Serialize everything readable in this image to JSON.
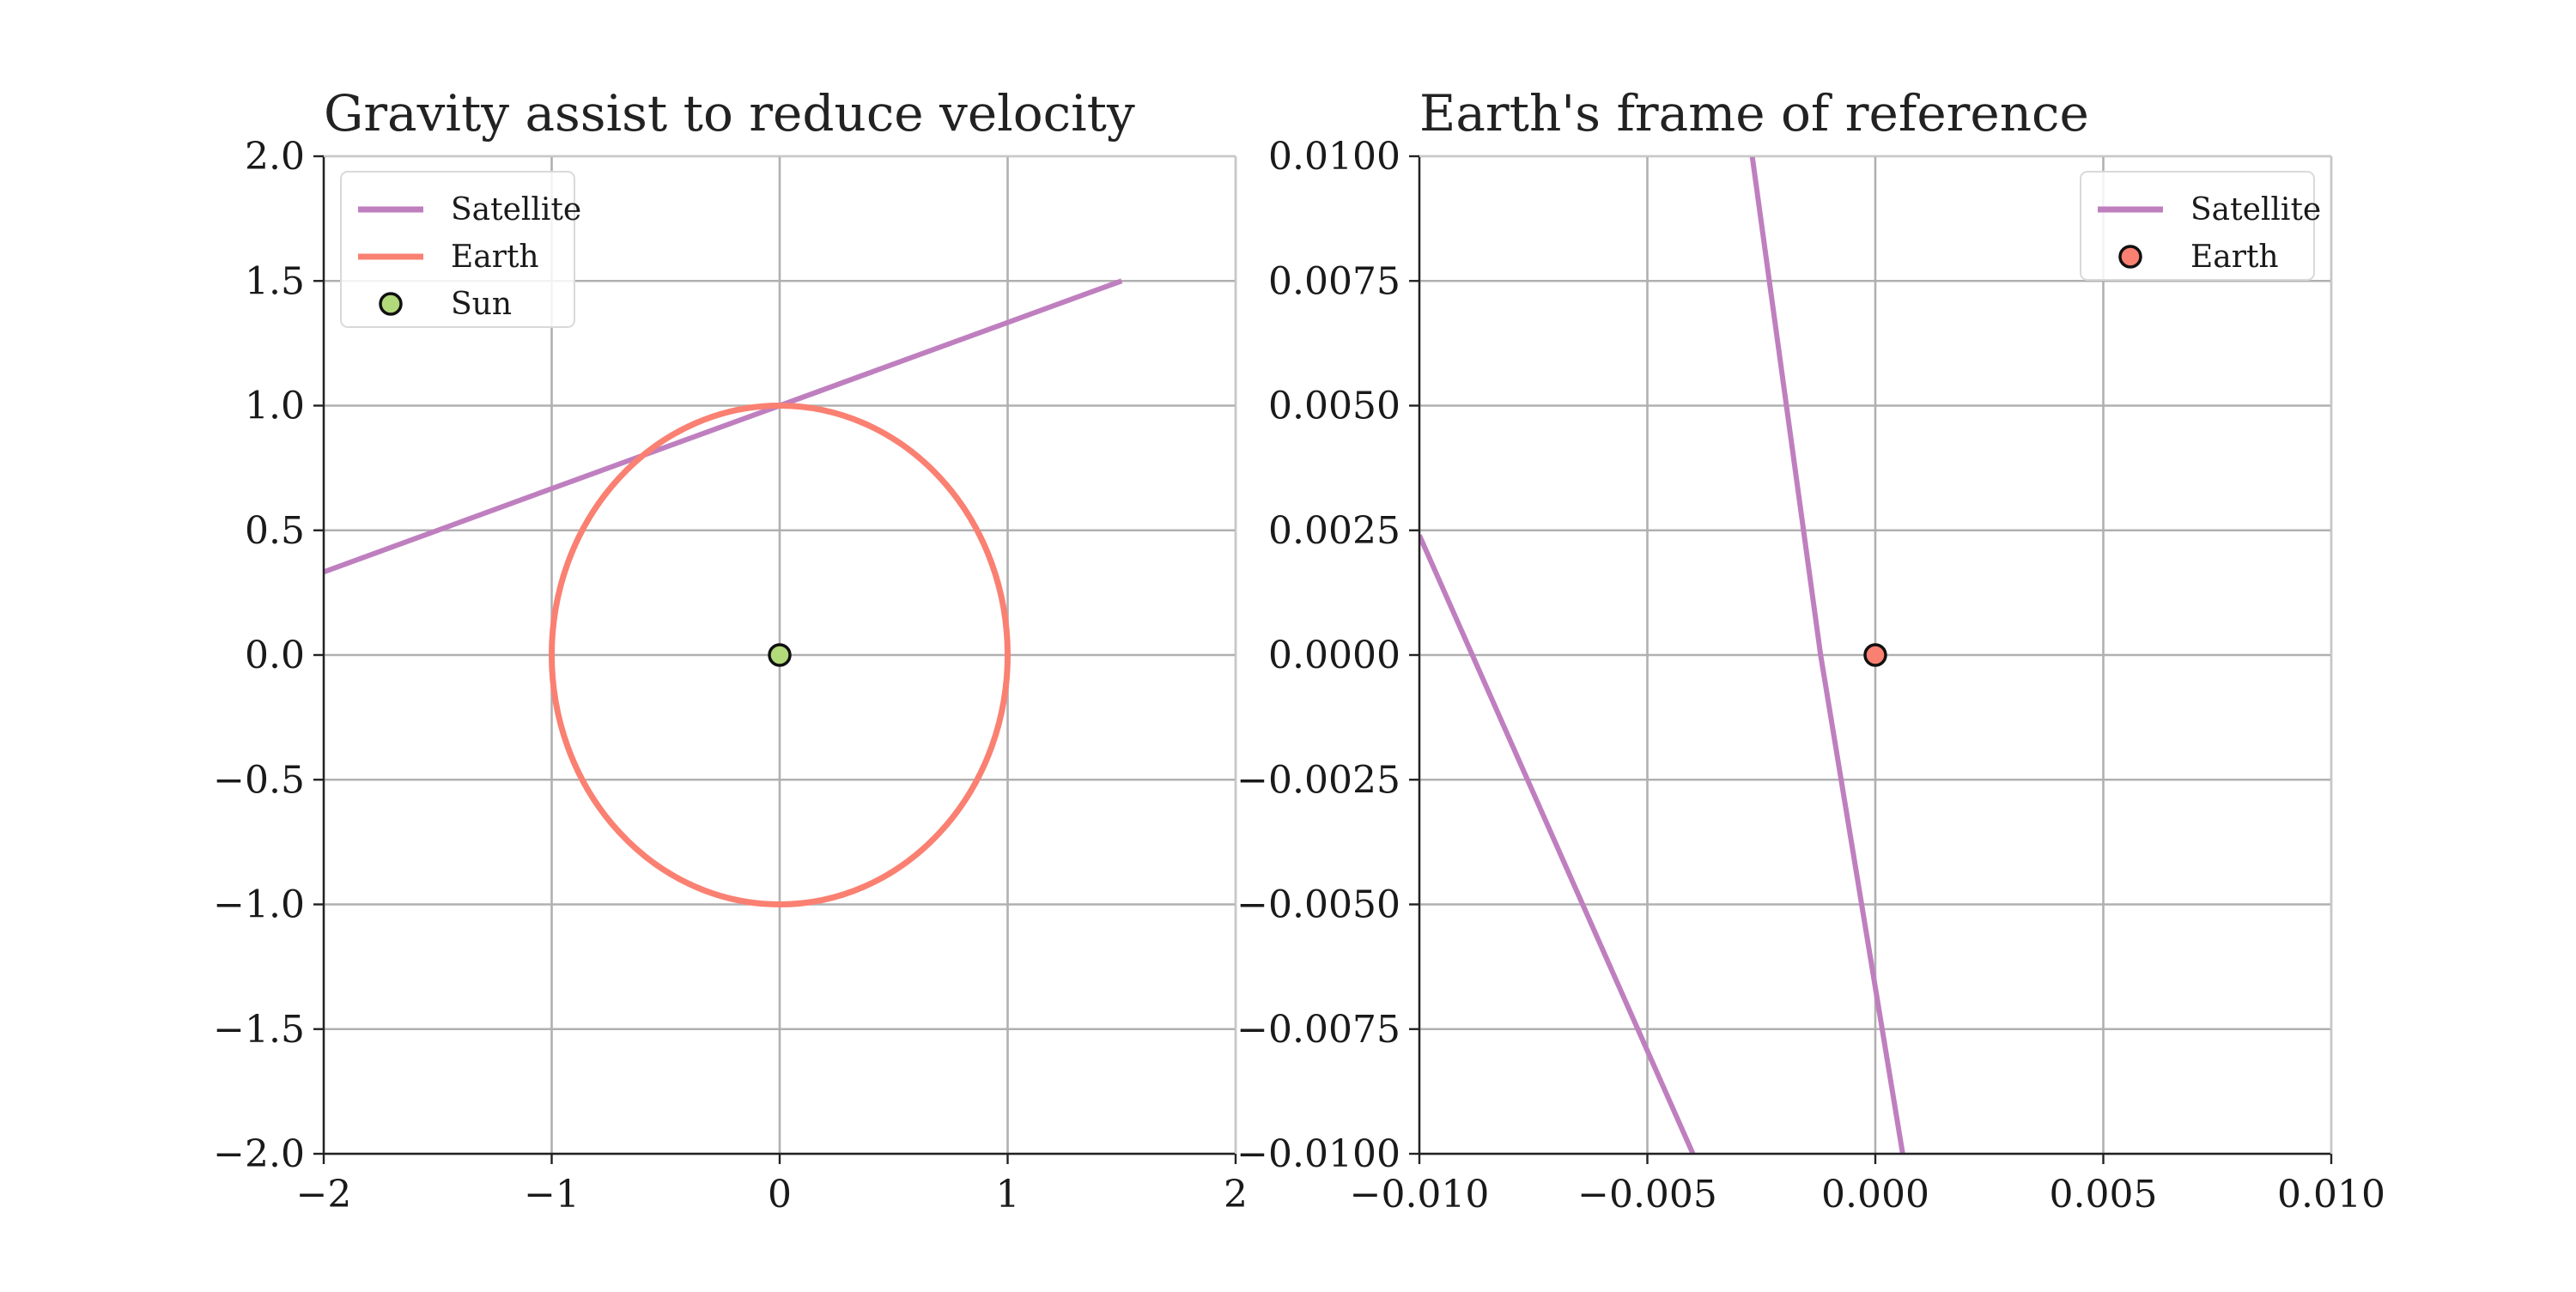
{
  "chart_data": [
    {
      "type": "line",
      "title": "Gravity assist to reduce velocity",
      "xlabel": "",
      "ylabel": "",
      "xlim": [
        -2,
        2
      ],
      "ylim": [
        -2,
        2
      ],
      "xticks": [
        -2,
        -1,
        0,
        1,
        2
      ],
      "yticks": [
        -2.0,
        -1.5,
        -1.0,
        -0.5,
        0.0,
        0.5,
        1.0,
        1.5,
        2.0
      ],
      "xtick_labels": [
        "−2",
        "−1",
        "0",
        "1",
        "2"
      ],
      "ytick_labels": [
        "−2.0",
        "−1.5",
        "−1.0",
        "−0.5",
        "0.0",
        "0.5",
        "1.0",
        "1.5",
        "2.0"
      ],
      "grid": true,
      "legend_position": "upper-left",
      "legend": [
        {
          "label": "Satellite",
          "kind": "line",
          "color": "#bf7fbf"
        },
        {
          "label": "Earth",
          "kind": "line",
          "color": "#fa8072"
        },
        {
          "label": "Sun",
          "kind": "marker",
          "color": "#b2d97a"
        }
      ],
      "series": [
        {
          "name": "Satellite",
          "kind": "line",
          "color": "#bf7fbf",
          "x": [
            -2.0,
            -1.0,
            0.0,
            1.5
          ],
          "y": [
            0.333,
            0.667,
            1.0,
            1.5
          ]
        },
        {
          "name": "Earth",
          "kind": "ellipse",
          "color": "#fa8072",
          "center": [
            0,
            0
          ],
          "radius_x": 1.0,
          "radius_y": 1.0
        },
        {
          "name": "Sun",
          "kind": "marker",
          "color": "#b2d97a",
          "x": [
            0.0
          ],
          "y": [
            0.0
          ]
        }
      ]
    },
    {
      "type": "line",
      "title": "Earth's frame of reference",
      "xlabel": "",
      "ylabel": "",
      "xlim": [
        -0.01,
        0.01
      ],
      "ylim": [
        -0.01,
        0.01
      ],
      "xticks": [
        -0.01,
        -0.005,
        0.0,
        0.005,
        0.01
      ],
      "yticks": [
        -0.01,
        -0.0075,
        -0.005,
        -0.0025,
        0.0,
        0.0025,
        0.005,
        0.0075,
        0.01
      ],
      "xtick_labels": [
        "−0.010",
        "−0.005",
        "0.000",
        "0.005",
        "0.010"
      ],
      "ytick_labels": [
        "−0.0100",
        "−0.0075",
        "−0.0050",
        "−0.0025",
        "0.0000",
        "0.0025",
        "0.0050",
        "0.0075",
        "0.0100"
      ],
      "grid": true,
      "legend_position": "upper-right",
      "legend": [
        {
          "label": "Satellite",
          "kind": "line",
          "color": "#bf7fbf"
        },
        {
          "label": "Earth",
          "kind": "marker",
          "color": "#fa8072"
        }
      ],
      "series": [
        {
          "name": "Satellite",
          "kind": "line",
          "color": "#bf7fbf",
          "segments": [
            {
              "x": [
                -0.0027,
                -0.0012,
                0.0006
              ],
              "y": [
                0.01,
                0.0,
                -0.01
              ]
            },
            {
              "x": [
                -0.01,
                -0.004
              ],
              "y": [
                0.0024,
                -0.01
              ]
            }
          ]
        },
        {
          "name": "Earth",
          "kind": "marker",
          "color": "#fa8072",
          "x": [
            0.0
          ],
          "y": [
            0.0
          ]
        }
      ]
    }
  ]
}
